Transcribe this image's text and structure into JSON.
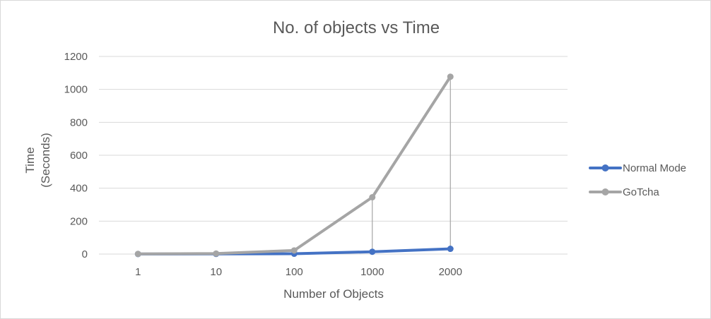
{
  "chart_data": {
    "type": "line",
    "title": "No. of objects vs Time",
    "xlabel": "Number of Objects",
    "ylabel": [
      "Time",
      "(Seconds)"
    ],
    "categories": [
      "1",
      "10",
      "100",
      "1000",
      "2000"
    ],
    "ylim": [
      0,
      1200
    ],
    "yticks": [
      "0",
      "200",
      "400",
      "600",
      "800",
      "1000",
      "1200"
    ],
    "grid": true,
    "legend_position": "right",
    "drop_lines": true,
    "series": [
      {
        "name": "Normal Mode",
        "color": "#4472c4",
        "values": [
          0.5,
          1,
          2,
          14,
          32
        ]
      },
      {
        "name": "GoTcha",
        "color": "#a5a5a5",
        "values": [
          1,
          3,
          22,
          345,
          1077
        ]
      }
    ]
  }
}
